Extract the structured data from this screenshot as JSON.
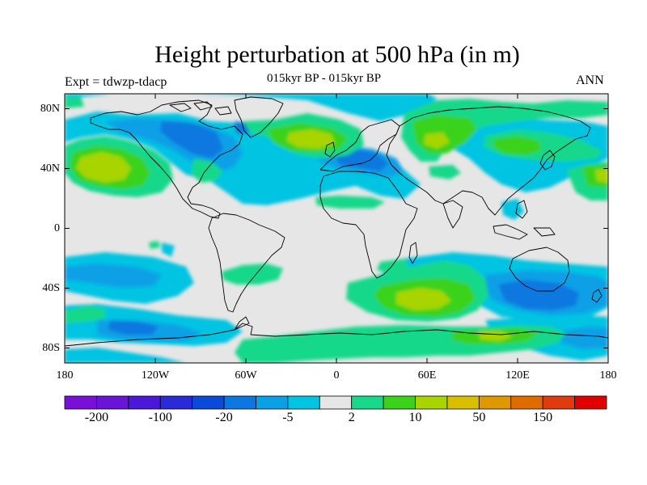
{
  "title": "Height perturbation at 500 hPa (in m)",
  "subtitle": "015kyr BP - 015kyr BP",
  "experiment_label": "Expt = tdwzp-tdacp",
  "season_label": "ANN",
  "map": {
    "projection": "cylindrical-equidistant",
    "lon_range": [
      -180,
      180
    ],
    "lat_range": [
      -90,
      90
    ],
    "background_color": "#e6e6e6",
    "coastline_color": "#000000",
    "y_ticks": [
      {
        "lat": 80,
        "label": "80N"
      },
      {
        "lat": 40,
        "label": "40N"
      },
      {
        "lat": 0,
        "label": "0"
      },
      {
        "lat": -40,
        "label": "40S"
      },
      {
        "lat": -80,
        "label": "80S"
      }
    ],
    "x_ticks": [
      {
        "lon": -180,
        "label": "180"
      },
      {
        "lon": -120,
        "label": "120W"
      },
      {
        "lon": -60,
        "label": "60W"
      },
      {
        "lon": 0,
        "label": "0"
      },
      {
        "lon": 60,
        "label": "60E"
      },
      {
        "lon": 120,
        "label": "120E"
      },
      {
        "lon": 180,
        "label": "180"
      }
    ]
  },
  "colorbar": {
    "colors": [
      "#7a10d8",
      "#6a14d8",
      "#4a18d8",
      "#2a2ad8",
      "#0a4ad8",
      "#0a78e0",
      "#0aa0e6",
      "#00c4e2",
      "#e6e6e6",
      "#18d88a",
      "#3ad21a",
      "#a8d400",
      "#d8c000",
      "#e09800",
      "#e06c00",
      "#e03a10",
      "#e00000"
    ],
    "tick_labels": [
      {
        "index": 1,
        "label": "-200"
      },
      {
        "index": 3,
        "label": "-100"
      },
      {
        "index": 5,
        "label": "-20"
      },
      {
        "index": 7,
        "label": "-5"
      },
      {
        "index": 9,
        "label": "2"
      },
      {
        "index": 11,
        "label": "10"
      },
      {
        "index": 13,
        "label": "50"
      },
      {
        "index": 15,
        "label": "150"
      }
    ]
  }
}
